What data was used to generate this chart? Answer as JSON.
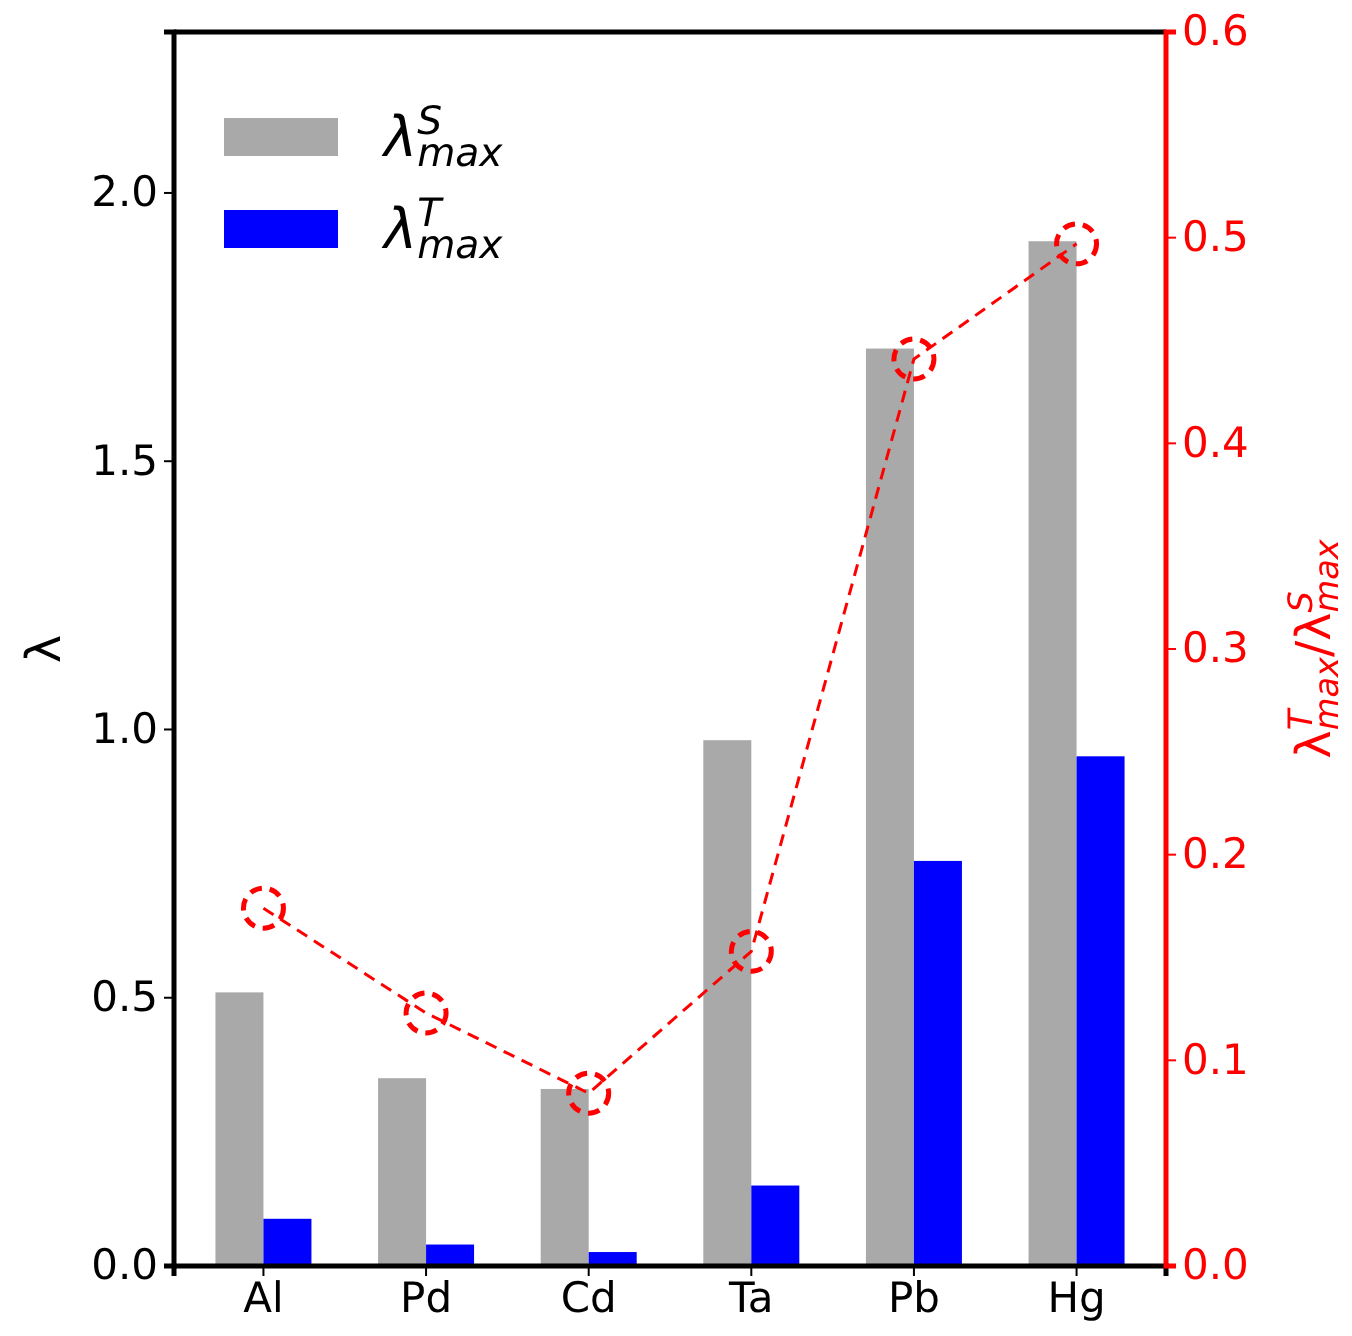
{
  "chart_data": {
    "type": "bar",
    "categories": [
      "Al",
      "Pd",
      "Cd",
      "Ta",
      "Pb",
      "Hg"
    ],
    "ylabel": "λ",
    "y2label": "λ$_{max}$$^{T}$/λ$_{max}$$^{S}$",
    "ylim": [
      0,
      2.3
    ],
    "yticks": [
      {
        "value": 0,
        "label": "0.0"
      },
      0.5,
      {
        "value": 1,
        "label": "1.0"
      },
      1.5,
      {
        "value": 2,
        "label": "2.0"
      }
    ],
    "y2lim": [
      0,
      0.6
    ],
    "y2ticks": [
      {
        "value": 0,
        "label": "0.0"
      },
      0.1,
      0.2,
      0.3,
      0.4,
      0.5,
      0.6
    ],
    "legend": "top left",
    "grid": false,
    "series": [
      {
        "name": "λ$_{max}$$^{S}$",
        "color": "#a9a9a9",
        "values": [
          0.51,
          0.35,
          0.33,
          0.98,
          1.71,
          1.91
        ]
      },
      {
        "name": "λ$_{max}$$^{T}$",
        "color": "#0000ff",
        "values": [
          0.088,
          0.04,
          0.026,
          0.15,
          0.755,
          0.95
        ]
      },
      {
        "type": "line",
        "axis": "y2",
        "color": "#ff0000",
        "marker": "circle",
        "line_style": "dashed",
        "values": [
          0.174,
          0.123,
          0.084,
          0.153,
          0.441,
          0.497
        ]
      }
    ]
  }
}
